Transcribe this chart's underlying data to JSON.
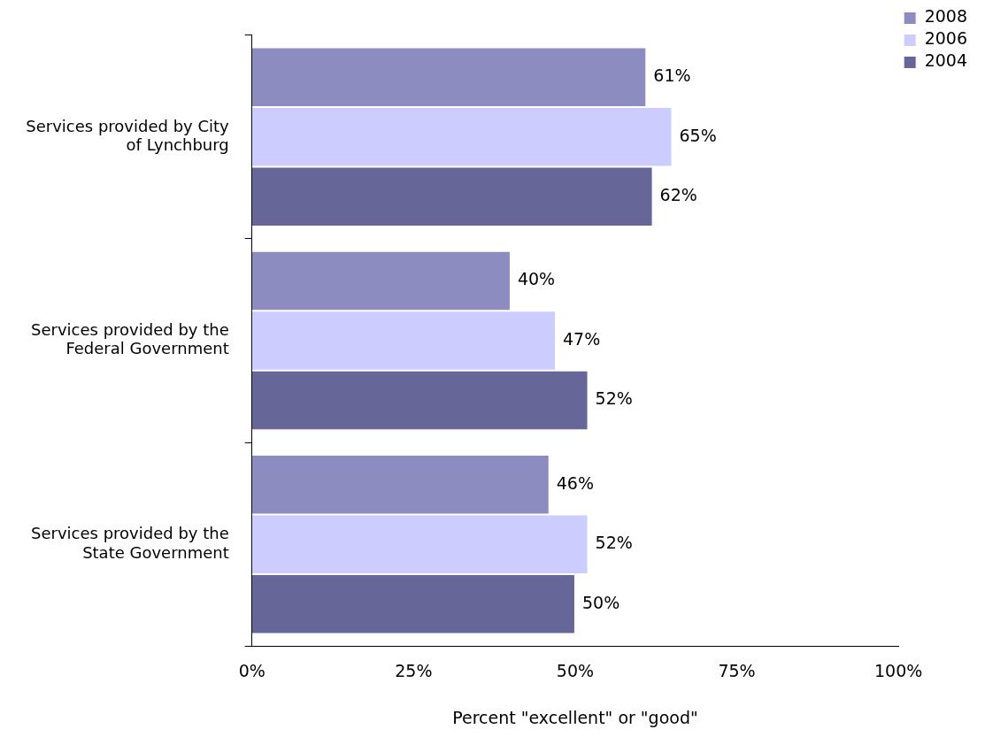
{
  "chart_data": {
    "type": "bar",
    "orientation": "horizontal",
    "xlabel": "Percent \"excellent\" or \"good\"",
    "categories": [
      "Services provided by City of Lynchburg",
      "Services provided by the Federal Government",
      "Services provided by the State Government"
    ],
    "series": [
      {
        "name": "2008",
        "color": "#8c8cc0",
        "values": [
          61,
          40,
          46
        ],
        "value_labels": [
          "61%",
          "40%",
          "46%"
        ]
      },
      {
        "name": "2006",
        "color": "#ccccff",
        "values": [
          65,
          47,
          52
        ],
        "value_labels": [
          "65%",
          "47%",
          "52%"
        ]
      },
      {
        "name": "2004",
        "color": "#666699",
        "values": [
          62,
          52,
          50
        ],
        "value_labels": [
          "62%",
          "52%",
          "50%"
        ]
      }
    ],
    "xlim": [
      0,
      100
    ],
    "xticks": [
      {
        "value": 0,
        "label": "0%"
      },
      {
        "value": 25,
        "label": "25%"
      },
      {
        "value": 50,
        "label": "50%"
      },
      {
        "value": 75,
        "label": "75%"
      },
      {
        "value": 100,
        "label": "100%"
      }
    ],
    "grid": false,
    "legend": "top right"
  }
}
